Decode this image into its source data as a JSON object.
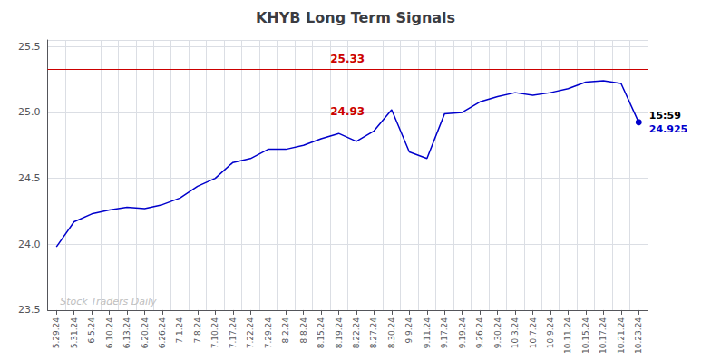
{
  "chart_data": {
    "type": "line",
    "title": "KHYB Long Term Signals",
    "categories": [
      "5.29.24",
      "5.31.24",
      "6.5.24",
      "6.10.24",
      "6.13.24",
      "6.20.24",
      "6.26.24",
      "7.1.24",
      "7.8.24",
      "7.10.24",
      "7.17.24",
      "7.22.24",
      "7.29.24",
      "8.2.24",
      "8.8.24",
      "8.15.24",
      "8.19.24",
      "8.22.24",
      "8.27.24",
      "8.30.24",
      "9.9.24",
      "9.11.24",
      "9.17.24",
      "9.19.24",
      "9.26.24",
      "9.30.24",
      "10.3.24",
      "10.7.24",
      "10.9.24",
      "10.11.24",
      "10.15.24",
      "10.17.24",
      "10.21.24",
      "10.23.24"
    ],
    "values": [
      23.98,
      24.17,
      24.23,
      24.26,
      24.28,
      24.27,
      24.3,
      24.35,
      24.44,
      24.5,
      24.62,
      24.65,
      24.72,
      24.72,
      24.75,
      24.8,
      24.84,
      24.78,
      24.86,
      25.02,
      24.7,
      24.65,
      24.99,
      25.0,
      25.08,
      25.12,
      25.15,
      25.13,
      25.15,
      25.18,
      25.23,
      25.24,
      25.22,
      24.925
    ],
    "color": "#0000cc",
    "ylim": [
      23.5,
      25.55
    ],
    "yticks": [
      23.5,
      {
        "value": 24.0,
        "label": "24.0"
      },
      24.5,
      {
        "value": 25.0,
        "label": "25.0"
      },
      25.5
    ],
    "grid": true,
    "hlines": [
      {
        "value": 25.33,
        "label": "25.33",
        "color": "#cc0000"
      },
      {
        "value": 24.925,
        "label": "24.93",
        "color": "#cc0000"
      }
    ],
    "annotations": [
      {
        "text": "15:59",
        "color": "#000000"
      },
      {
        "text": "24.925",
        "color": "#0000cc"
      }
    ],
    "watermark": {
      "text": "Stock Traders Daily",
      "color": "#c0c0c0"
    }
  }
}
